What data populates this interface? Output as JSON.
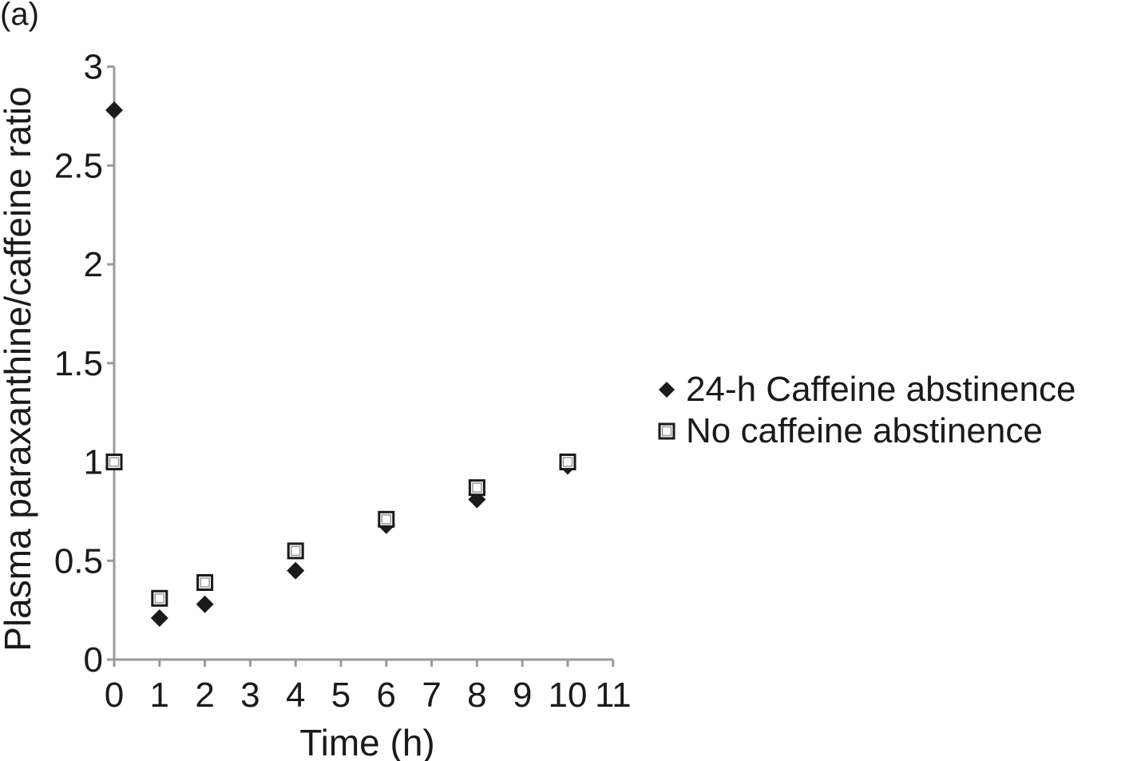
{
  "panel_label": "(a)",
  "chart_data": {
    "type": "scatter",
    "title": "",
    "xlabel": "Time (h)",
    "ylabel": "Plasma paraxanthine/caffeine ratio",
    "xlim": [
      0,
      11
    ],
    "ylim": [
      0,
      3
    ],
    "x_ticks": [
      "0",
      "1",
      "2",
      "3",
      "4",
      "5",
      "6",
      "7",
      "8",
      "9",
      "10",
      "11"
    ],
    "y_ticks": [
      "0",
      "0.5",
      "1",
      "1.5",
      "2",
      "2.5",
      "3"
    ],
    "grid": false,
    "legend_position": "right",
    "series": [
      {
        "name": "24-h Caffeine abstinence",
        "marker": "filled-diamond",
        "color": "#1a1a1a",
        "x": [
          0,
          1,
          2,
          4,
          6,
          8,
          10
        ],
        "y": [
          2.78,
          0.21,
          0.28,
          0.45,
          0.68,
          0.81,
          0.98
        ]
      },
      {
        "name": "No caffeine abstinence",
        "marker": "open-square",
        "color": "#1a1a1a",
        "x": [
          0,
          1,
          2,
          4,
          6,
          8,
          10
        ],
        "y": [
          1.0,
          0.31,
          0.39,
          0.55,
          0.71,
          0.87,
          1.0
        ]
      }
    ]
  }
}
